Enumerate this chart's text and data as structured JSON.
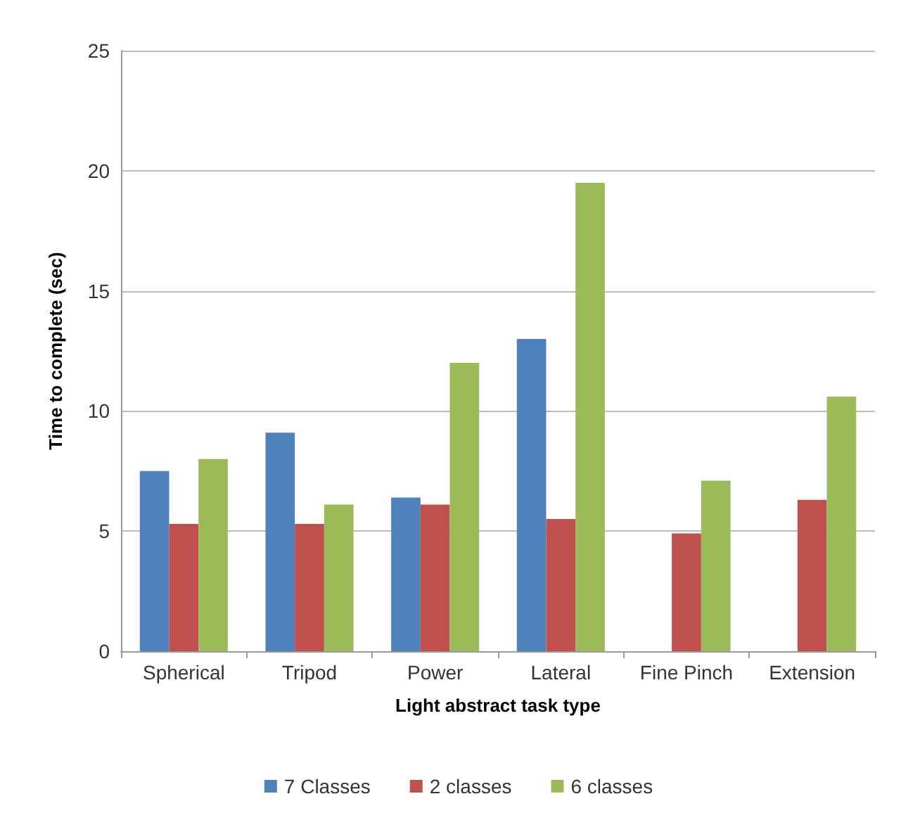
{
  "chart_data": {
    "type": "bar",
    "xlabel": "Light abstract task type",
    "ylabel": "Time to complete (sec)",
    "categories": [
      "Spherical",
      "Tripod",
      "Power",
      "Lateral",
      "Fine Pinch",
      "Extension"
    ],
    "series": [
      {
        "name": "7 Classes",
        "color": "#4f81bd",
        "values": [
          7.5,
          9.1,
          6.4,
          13.0,
          null,
          null
        ]
      },
      {
        "name": "2 classes",
        "color": "#c0504d",
        "values": [
          5.3,
          5.3,
          6.1,
          5.5,
          4.9,
          6.3
        ]
      },
      {
        "name": "6 classes",
        "color": "#9bbb59",
        "values": [
          8.0,
          6.1,
          12.0,
          19.5,
          7.1,
          10.6
        ]
      }
    ],
    "ylim": [
      0,
      25
    ],
    "yticks": [
      0,
      5,
      10,
      15,
      20,
      25
    ],
    "grid": "y",
    "legend": "bottom"
  }
}
